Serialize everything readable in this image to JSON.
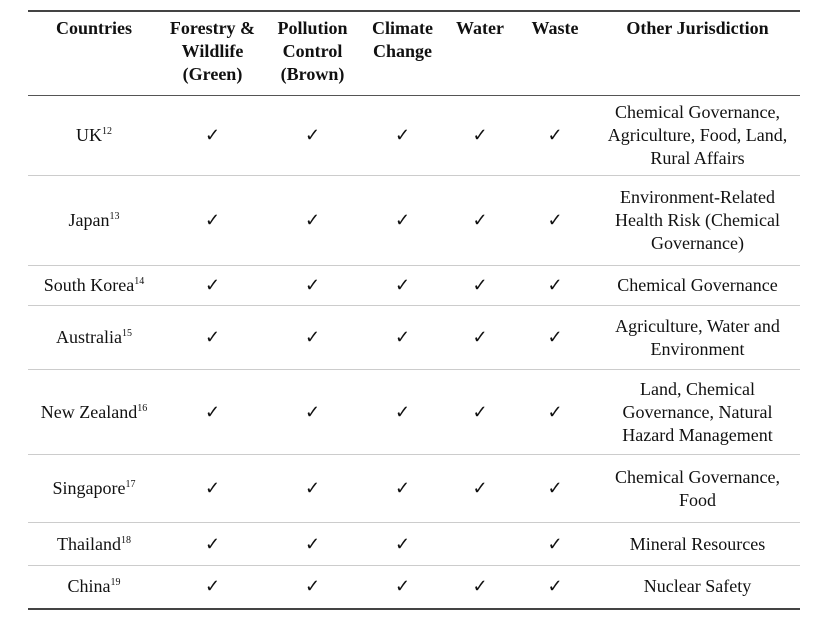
{
  "table": {
    "headers": [
      "Countries",
      "Forestry & Wildlife (Green)",
      "Pollution Control (Brown)",
      "Climate Change",
      "Water",
      "Waste",
      "Other Jurisdiction"
    ],
    "rows": [
      {
        "country": "UK",
        "note": "12",
        "cells": [
          "✓",
          "✓",
          "✓",
          "✓",
          "✓"
        ],
        "other": "Chemical Governance, Agriculture, Food, Land, Rural Affairs"
      },
      {
        "country": "Japan",
        "note": "13",
        "cells": [
          "✓",
          "✓",
          "✓",
          "✓",
          "✓"
        ],
        "other": "Environment-Related Health Risk (Chemical Governance)"
      },
      {
        "country": "South Korea",
        "note": "14",
        "cells": [
          "✓",
          "✓",
          "✓",
          "✓",
          "✓"
        ],
        "other": "Chemical Governance"
      },
      {
        "country": "Australia",
        "note": "15",
        "cells": [
          "✓",
          "✓",
          "✓",
          "✓",
          "✓"
        ],
        "other": "Agriculture, Water and Environment"
      },
      {
        "country": "New Zealand",
        "note": "16",
        "cells": [
          "✓",
          "✓",
          "✓",
          "✓",
          "✓"
        ],
        "other": "Land, Chemical Governance, Natural Hazard Management"
      },
      {
        "country": "Singapore",
        "note": "17",
        "cells": [
          "✓",
          "✓",
          "✓",
          "✓",
          "✓"
        ],
        "other": "Chemical Governance, Food"
      },
      {
        "country": "Thailand",
        "note": "18",
        "cells": [
          "✓",
          "✓",
          "✓",
          null,
          "✓"
        ],
        "other": "Mineral Resources"
      },
      {
        "country": "China",
        "note": "19",
        "cells": [
          "✓",
          "✓",
          "✓",
          "✓",
          "✓"
        ],
        "other": "Nuclear Safety"
      }
    ]
  }
}
